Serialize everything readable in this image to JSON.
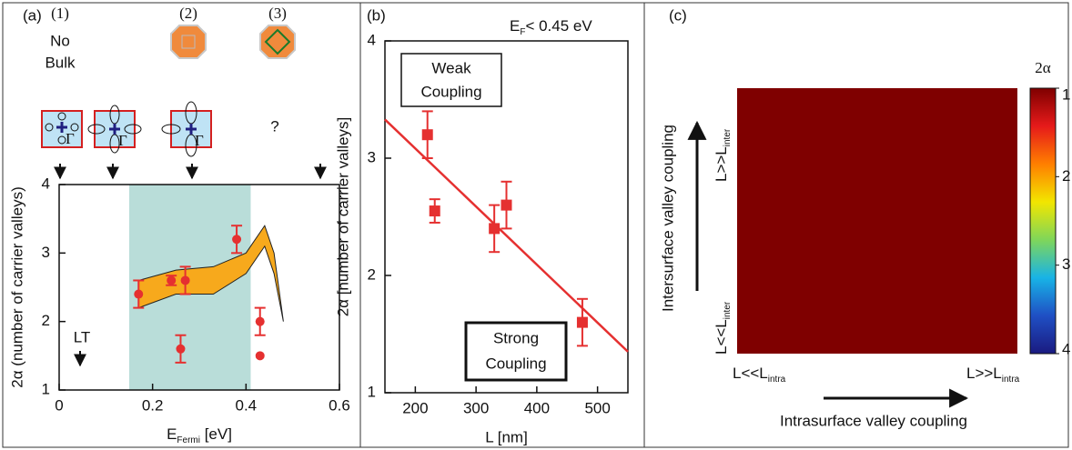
{
  "chart_data": [
    {
      "type": "scatter",
      "panel_label": "(a)",
      "x_label": [
        "E",
        "Fermi",
        " [eV]"
      ],
      "y_label": "2α (number of carrier valleys)",
      "xlim": [
        0,
        0.6
      ],
      "xticks": [
        0,
        0.2,
        0.4,
        0.6
      ],
      "ylim": [
        1,
        4
      ],
      "yticks": [
        1,
        2,
        3,
        4
      ],
      "shaded_xrange": [
        0.15,
        0.41
      ],
      "shade_color": "#b9ddd9",
      "band": {
        "color": "#f7a91c",
        "x": [
          0.17,
          0.25,
          0.33,
          0.4,
          0.44,
          0.46,
          0.48
        ],
        "upper": [
          2.6,
          2.75,
          2.8,
          3.0,
          3.4,
          3.0,
          2.0
        ],
        "lower": [
          2.2,
          2.4,
          2.4,
          2.7,
          3.1,
          2.7,
          2.0
        ]
      },
      "series": [
        {
          "color": "#e53030",
          "x": [
            0.17,
            0.24,
            0.27,
            0.26,
            0.38,
            0.43,
            0.43
          ],
          "values": [
            2.4,
            2.6,
            2.6,
            1.6,
            3.2,
            2.0,
            1.5
          ],
          "errors": [
            0.2,
            0.07,
            0.2,
            0.2,
            0.2,
            0.2,
            null
          ]
        }
      ],
      "annotations": {
        "columns": [
          "(1)",
          "(2)",
          "(3)"
        ],
        "no_bulk": [
          "No",
          "Bulk"
        ],
        "unknown": "?",
        "gamma": "Γ",
        "lt": "LT"
      }
    },
    {
      "type": "scatter",
      "panel_label": "(b)",
      "title": [
        "E",
        "F",
        "< 0.45 eV"
      ],
      "x_label": "L [nm]",
      "y_label": "2α [number of carrier valleys]",
      "xlim": [
        150,
        550
      ],
      "xticks": [
        200,
        300,
        400,
        500
      ],
      "ylim": [
        1,
        4
      ],
      "yticks": [
        1,
        2,
        3,
        4
      ],
      "series": [
        {
          "color": "#e53030",
          "x": [
            220,
            232,
            330,
            350,
            475
          ],
          "values": [
            3.2,
            2.55,
            2.4,
            2.6,
            1.6
          ],
          "errors": [
            0.2,
            0.1,
            0.2,
            0.2,
            0.2
          ]
        }
      ],
      "fit": {
        "color": "#e53030",
        "x": [
          150,
          550
        ],
        "values": [
          3.33,
          1.35
        ]
      },
      "boxes": {
        "weak": [
          "Weak",
          "Coupling"
        ],
        "strong": [
          "Strong",
          "Coupling"
        ]
      }
    },
    {
      "type": "heatmap",
      "panel_label": "(c)",
      "colorbar_label": "2α",
      "clim": [
        1,
        4
      ],
      "cticks": [
        1,
        2,
        3,
        4
      ],
      "colors": [
        "#7f0000",
        "#e61a1a",
        "#ff7f00",
        "#f2e600",
        "#7fd65a",
        "#18b3e6",
        "#1f4fc4",
        "#1a1a80"
      ],
      "x_labels": [
        [
          "L<<L",
          "intra"
        ],
        [
          "L>>L",
          "intra"
        ]
      ],
      "y_labels": [
        [
          "L<<L",
          "inter"
        ],
        [
          "L>>L",
          "inter"
        ]
      ],
      "x_title": "Intrasurface valley coupling",
      "y_title": "Intersurface valley coupling"
    }
  ]
}
